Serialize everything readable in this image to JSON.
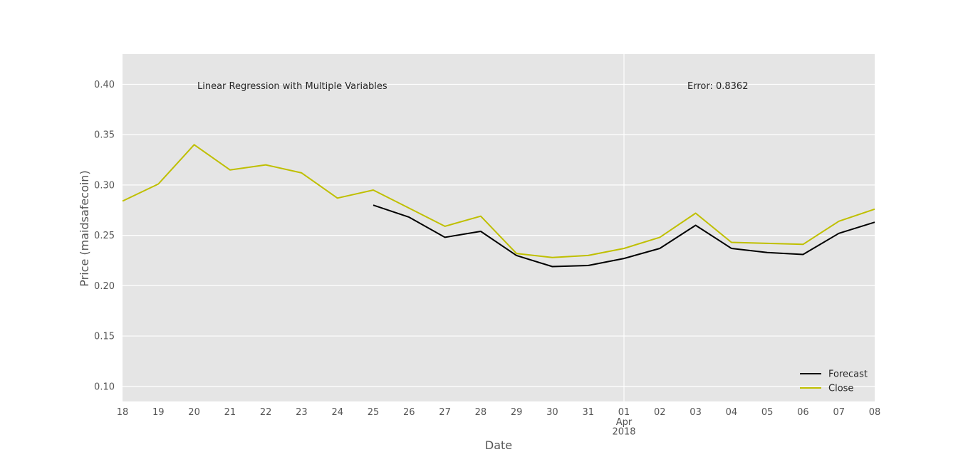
{
  "chart_data": {
    "type": "line",
    "xlabel": "Date",
    "ylabel": "Price (maidsafecoin)",
    "ylim": [
      0.085,
      0.43
    ],
    "yticks": [
      0.1,
      0.15,
      0.2,
      0.25,
      0.3,
      0.35,
      0.4
    ],
    "ytick_labels": [
      "0.10",
      "0.15",
      "0.20",
      "0.25",
      "0.30",
      "0.35",
      "0.40"
    ],
    "xlim": [
      "2018-03-18",
      "2018-04-08"
    ],
    "x": [
      "2018-03-18",
      "2018-03-19",
      "2018-03-20",
      "2018-03-21",
      "2018-03-22",
      "2018-03-23",
      "2018-03-24",
      "2018-03-25",
      "2018-03-26",
      "2018-03-27",
      "2018-03-28",
      "2018-03-29",
      "2018-03-30",
      "2018-03-31",
      "2018-04-01",
      "2018-04-02",
      "2018-04-03",
      "2018-04-04",
      "2018-04-05",
      "2018-04-06",
      "2018-04-07",
      "2018-04-08"
    ],
    "xtick_labels": [
      "18",
      "19",
      "20",
      "21",
      "22",
      "23",
      "24",
      "25",
      "26",
      "27",
      "28",
      "29",
      "30",
      "31",
      "01",
      "02",
      "03",
      "04",
      "05",
      "06",
      "07",
      "08"
    ],
    "xtick_sublabels": {
      "01": [
        "Apr",
        "2018"
      ]
    },
    "grid": true,
    "legend_position": "bottom-right",
    "series": [
      {
        "name": "Forecast",
        "color": "#000000",
        "values": [
          null,
          null,
          null,
          null,
          null,
          null,
          null,
          0.28,
          0.268,
          0.248,
          0.254,
          0.23,
          0.219,
          0.22,
          0.227,
          0.237,
          0.26,
          0.237,
          0.233,
          0.231,
          0.252,
          0.263
        ]
      },
      {
        "name": "Close",
        "color": "#bfbf00",
        "values": [
          0.284,
          0.301,
          0.34,
          0.315,
          0.32,
          0.312,
          0.287,
          0.295,
          0.277,
          0.259,
          0.269,
          0.232,
          0.228,
          0.23,
          0.237,
          0.248,
          0.272,
          0.243,
          0.242,
          0.241,
          0.264,
          0.276
        ]
      }
    ],
    "annotations": [
      {
        "id": "title-text",
        "text": "Linear Regression with Multiple Variables",
        "x": "2018-03-20",
        "y": 0.395
      },
      {
        "id": "error-text",
        "text": "Error: 0.8362",
        "x": "2018-04-02.75",
        "y": 0.395
      }
    ],
    "style": {
      "plot_background": "#e5e5e5",
      "grid_color": "#ffffff",
      "highlight_gridline_x": "2018-04-01"
    }
  }
}
